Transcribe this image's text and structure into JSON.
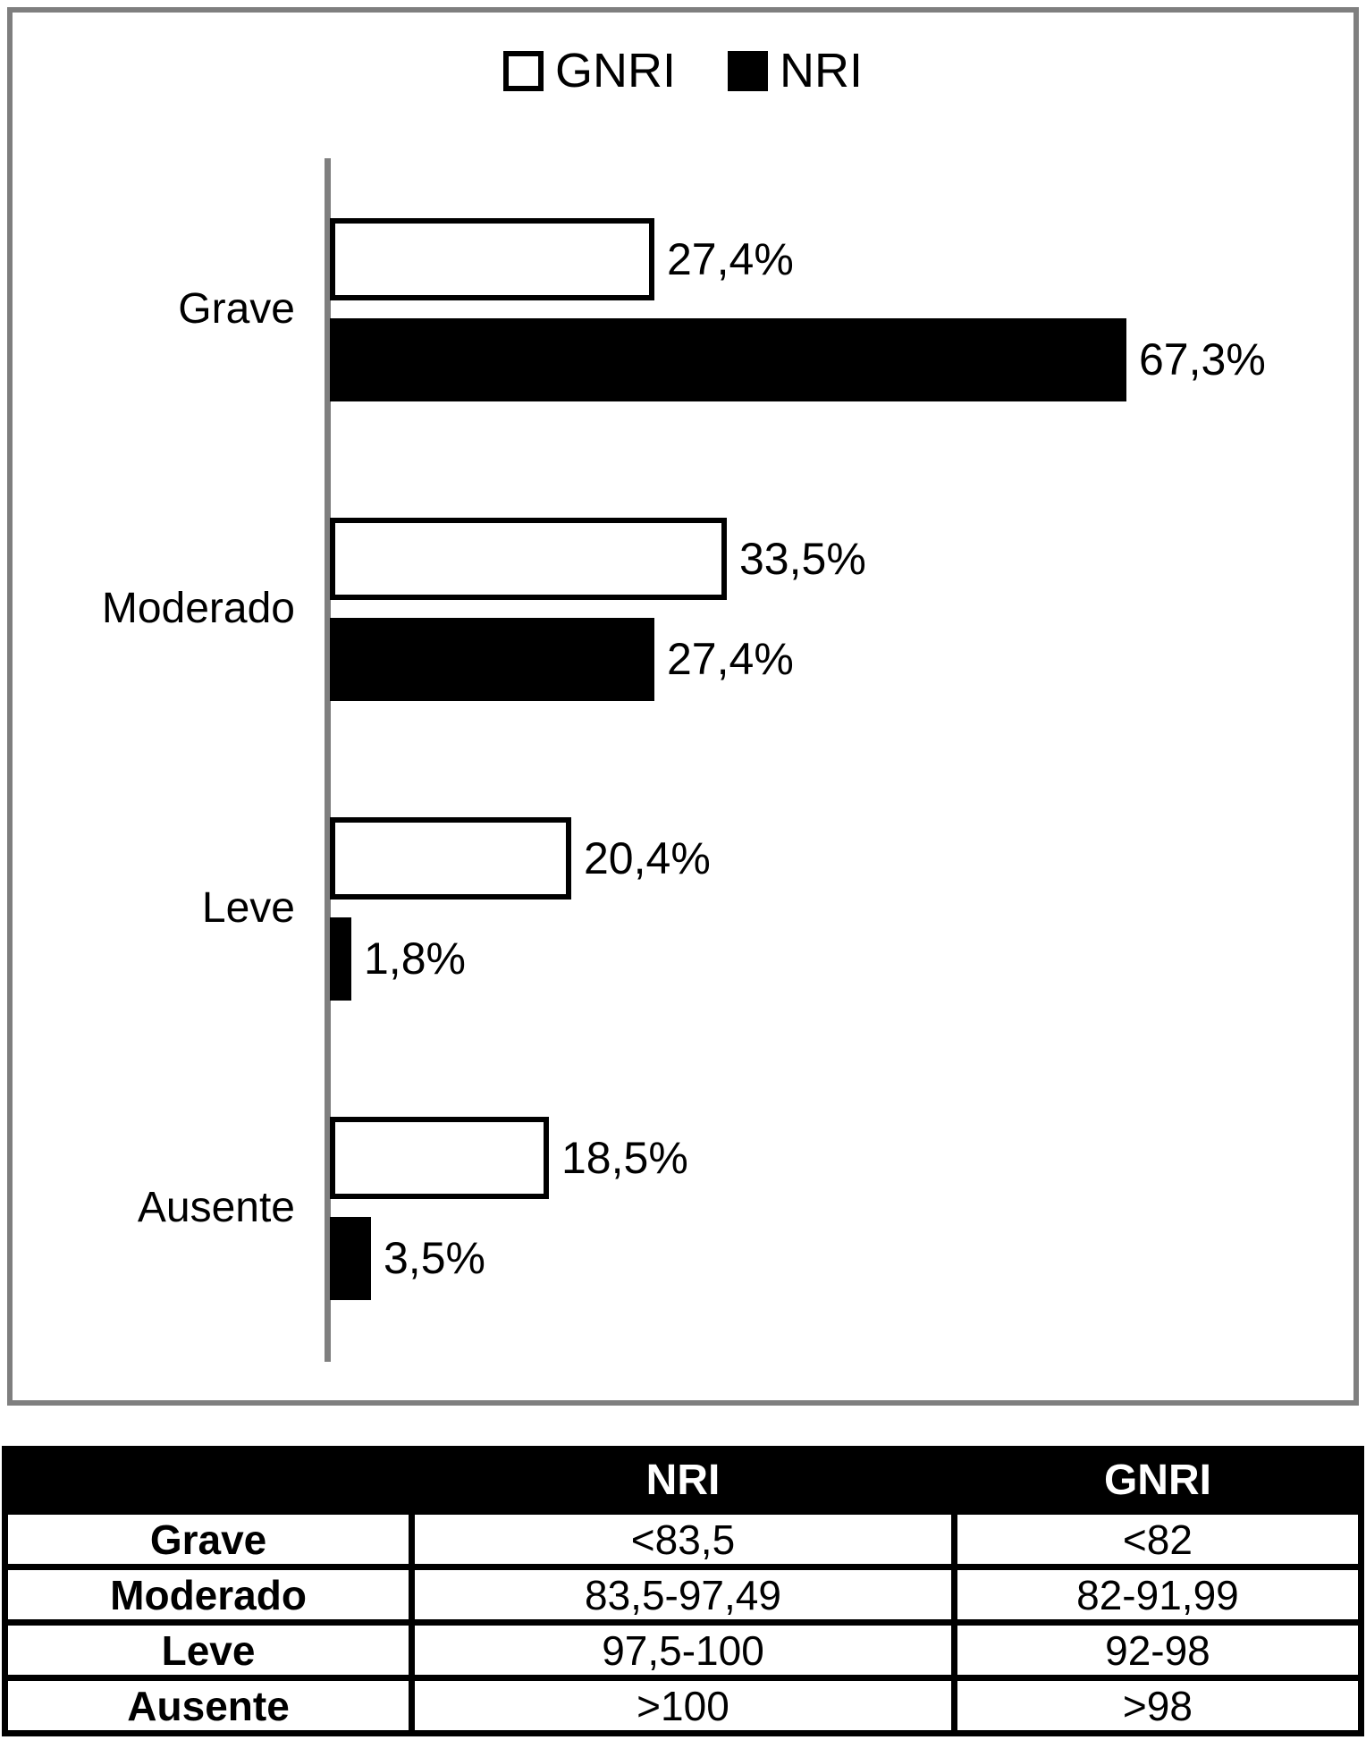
{
  "chart_data": [
    {
      "type": "bar",
      "orientation": "horizontal",
      "title": "",
      "categories": [
        "Grave",
        "Moderado",
        "Leve",
        "Ausente"
      ],
      "series": [
        {
          "name": "GNRI",
          "color": "#ffffff",
          "values": [
            27.4,
            33.5,
            20.4,
            18.5
          ],
          "value_labels": [
            "27,4%",
            "33,5%",
            "20,4%",
            "18,5%"
          ]
        },
        {
          "name": "NRI",
          "color": "#000000",
          "values": [
            67.3,
            27.4,
            1.8,
            3.5
          ],
          "value_labels": [
            "67,3%",
            "27,4%",
            "1,8%",
            "3,5%"
          ]
        }
      ],
      "bar_order_in_group": [
        "GNRI",
        "NRI"
      ],
      "xlim": [
        0,
        100
      ],
      "grid": false,
      "legend_position": "top-center",
      "value_suffix": "%"
    },
    {
      "type": "table",
      "headers": [
        "",
        "NRI",
        "GNRI"
      ],
      "rows": [
        [
          "Grave",
          "<83,5",
          "<82"
        ],
        [
          "Moderado",
          "83,5-97,49",
          "82-91,99"
        ],
        [
          "Leve",
          "97,5-100",
          "92-98"
        ],
        [
          "Ausente",
          ">100",
          ">98"
        ]
      ]
    }
  ],
  "colors": {
    "frame_border": "#7f7f7f",
    "axis_line": "#7f7f7f",
    "bar_gnri_fill": "#ffffff",
    "bar_gnri_border": "#000000",
    "bar_nri_fill": "#000000",
    "table_header_bg": "#000000",
    "table_header_text": "#ffffff",
    "table_border": "#000000"
  }
}
